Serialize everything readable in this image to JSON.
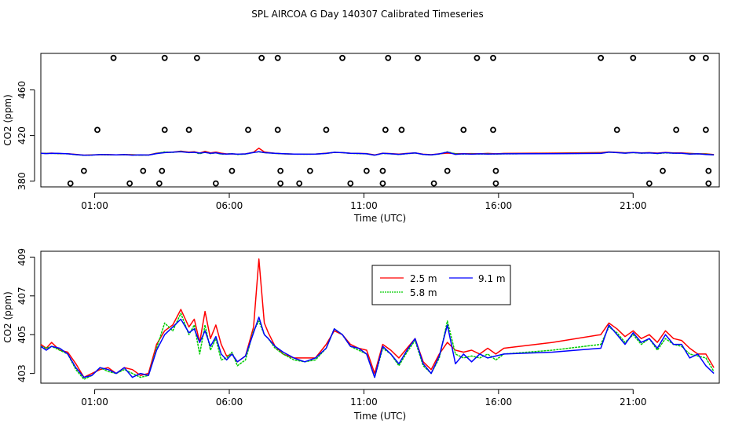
{
  "title": "SPL AIRCOA G  Day 140307  Calibrated Timeseries",
  "chart_data": [
    {
      "type": "line+scatter",
      "xlabel": "Time (UTC)",
      "ylabel": "CO2 (ppm)",
      "xlim": [
        -1,
        24.2
      ],
      "ylim": [
        375,
        492
      ],
      "xticks": [
        {
          "v": 1,
          "label": "01:00"
        },
        {
          "v": 6,
          "label": "06:00"
        },
        {
          "v": 11,
          "label": "11:00"
        },
        {
          "v": 16,
          "label": "16:00"
        },
        {
          "v": 21,
          "label": "21:00"
        }
      ],
      "yticks": [
        {
          "v": 380,
          "label": "380"
        },
        {
          "v": 420,
          "label": "420"
        },
        {
          "v": 460,
          "label": "460"
        }
      ],
      "markers": [
        {
          "x": 0.1,
          "y": 378
        },
        {
          "x": 0.6,
          "y": 389
        },
        {
          "x": 1.1,
          "y": 425
        },
        {
          "x": 1.7,
          "y": 488
        },
        {
          "x": 2.3,
          "y": 378
        },
        {
          "x": 2.8,
          "y": 389
        },
        {
          "x": 3.4,
          "y": 378
        },
        {
          "x": 3.5,
          "y": 389
        },
        {
          "x": 3.6,
          "y": 425
        },
        {
          "x": 3.6,
          "y": 488
        },
        {
          "x": 4.5,
          "y": 425
        },
        {
          "x": 4.8,
          "y": 488
        },
        {
          "x": 5.5,
          "y": 378
        },
        {
          "x": 6.1,
          "y": 389
        },
        {
          "x": 6.7,
          "y": 425
        },
        {
          "x": 7.2,
          "y": 488
        },
        {
          "x": 7.8,
          "y": 488
        },
        {
          "x": 7.8,
          "y": 425
        },
        {
          "x": 7.9,
          "y": 389
        },
        {
          "x": 7.9,
          "y": 378
        },
        {
          "x": 8.6,
          "y": 378
        },
        {
          "x": 9.0,
          "y": 389
        },
        {
          "x": 9.6,
          "y": 425
        },
        {
          "x": 10.2,
          "y": 488
        },
        {
          "x": 10.5,
          "y": 378
        },
        {
          "x": 11.1,
          "y": 389
        },
        {
          "x": 11.7,
          "y": 389
        },
        {
          "x": 11.7,
          "y": 378
        },
        {
          "x": 11.8,
          "y": 425
        },
        {
          "x": 11.9,
          "y": 488
        },
        {
          "x": 12.4,
          "y": 425
        },
        {
          "x": 13.0,
          "y": 488
        },
        {
          "x": 13.6,
          "y": 378
        },
        {
          "x": 14.1,
          "y": 389
        },
        {
          "x": 14.7,
          "y": 425
        },
        {
          "x": 15.2,
          "y": 488
        },
        {
          "x": 15.8,
          "y": 488
        },
        {
          "x": 15.8,
          "y": 425
        },
        {
          "x": 15.9,
          "y": 389
        },
        {
          "x": 15.9,
          "y": 378
        },
        {
          "x": 19.8,
          "y": 488
        },
        {
          "x": 20.4,
          "y": 425
        },
        {
          "x": 21.0,
          "y": 488
        },
        {
          "x": 21.6,
          "y": 378
        },
        {
          "x": 22.1,
          "y": 389
        },
        {
          "x": 22.6,
          "y": 425
        },
        {
          "x": 23.2,
          "y": 488
        },
        {
          "x": 23.7,
          "y": 488
        },
        {
          "x": 23.7,
          "y": 425
        },
        {
          "x": 23.8,
          "y": 389
        },
        {
          "x": 23.8,
          "y": 378
        }
      ],
      "note": "lines are the same three series shown in the lower panel"
    },
    {
      "type": "line",
      "xlabel": "Time (UTC)",
      "ylabel": "CO2 (ppm)",
      "xlim": [
        -1,
        24.2
      ],
      "ylim": [
        402.5,
        409.3
      ],
      "xticks": [
        {
          "v": 1,
          "label": "01:00"
        },
        {
          "v": 6,
          "label": "06:00"
        },
        {
          "v": 11,
          "label": "11:00"
        },
        {
          "v": 16,
          "label": "16:00"
        },
        {
          "v": 21,
          "label": "21:00"
        }
      ],
      "yticks": [
        {
          "v": 403,
          "label": "403"
        },
        {
          "v": 405,
          "label": "405"
        },
        {
          "v": 407,
          "label": "407"
        },
        {
          "v": 409,
          "label": "409"
        }
      ],
      "legend": {
        "position": "top-center",
        "entries": [
          {
            "label": "2.5 m",
            "color": "#ff0000"
          },
          {
            "label": "5.8 m",
            "color": "#00cd00"
          },
          {
            "label": "9.1 m",
            "color": "#0000ff"
          }
        ]
      },
      "series": [
        {
          "name": "2.5 m",
          "color": "#ff0000",
          "x": [
            -1.0,
            -0.8,
            -0.6,
            -0.3,
            0.0,
            0.3,
            0.6,
            0.9,
            1.2,
            1.5,
            1.8,
            2.1,
            2.4,
            2.7,
            3.0,
            3.3,
            3.6,
            3.9,
            4.2,
            4.5,
            4.7,
            4.9,
            5.1,
            5.3,
            5.5,
            5.7,
            5.9,
            6.1,
            6.3,
            6.6,
            6.9,
            7.1,
            7.3,
            7.45,
            7.7,
            8.0,
            8.4,
            8.8,
            9.2,
            9.6,
            9.9,
            10.2,
            10.5,
            10.8,
            11.1,
            11.4,
            11.7,
            12.0,
            12.3,
            12.6,
            12.9,
            13.2,
            13.5,
            13.8,
            14.1,
            14.4,
            14.7,
            15.0,
            15.3,
            15.6,
            15.9,
            16.2,
            18.0,
            19.8,
            20.1,
            20.4,
            20.7,
            21.0,
            21.3,
            21.6,
            21.9,
            22.2,
            22.5,
            22.8,
            23.1,
            23.4,
            23.7,
            24.0
          ],
          "y": [
            404.5,
            404.3,
            404.6,
            404.2,
            404.1,
            403.5,
            402.8,
            403.0,
            403.2,
            403.3,
            403.0,
            403.3,
            403.2,
            402.9,
            403.0,
            404.5,
            405.2,
            405.5,
            406.3,
            405.4,
            405.8,
            404.6,
            406.2,
            404.8,
            405.5,
            404.5,
            403.9,
            404.0,
            403.6,
            403.9,
            405.4,
            408.9,
            405.6,
            405.1,
            404.4,
            404.0,
            403.8,
            403.8,
            403.8,
            404.5,
            405.2,
            405.0,
            404.5,
            404.3,
            404.2,
            403.0,
            404.5,
            404.2,
            403.8,
            404.3,
            404.8,
            403.6,
            403.2,
            404.0,
            404.6,
            404.2,
            404.1,
            404.2,
            404.0,
            404.3,
            404.0,
            404.3,
            404.6,
            405.0,
            405.6,
            405.3,
            404.9,
            405.2,
            404.8,
            405.0,
            404.6,
            405.2,
            404.8,
            404.7,
            404.3,
            404.0,
            404.0,
            403.3
          ],
          "points_note": "estimated from plot"
        },
        {
          "name": "5.8 m",
          "color": "#00cd00",
          "x": [
            -1.0,
            -0.8,
            -0.6,
            -0.3,
            0.0,
            0.3,
            0.6,
            0.9,
            1.2,
            1.5,
            1.8,
            2.1,
            2.4,
            2.7,
            3.0,
            3.3,
            3.6,
            3.9,
            4.2,
            4.5,
            4.7,
            4.9,
            5.1,
            5.3,
            5.5,
            5.7,
            5.9,
            6.1,
            6.3,
            6.6,
            6.9,
            7.1,
            7.3,
            7.45,
            7.7,
            8.0,
            8.4,
            8.8,
            9.2,
            9.6,
            9.9,
            10.2,
            10.5,
            10.8,
            11.1,
            11.4,
            11.7,
            12.0,
            12.3,
            12.6,
            12.9,
            13.2,
            13.5,
            13.8,
            14.1,
            14.4,
            14.7,
            15.0,
            15.3,
            15.6,
            15.9,
            16.2,
            18.0,
            19.8,
            20.1,
            20.4,
            20.7,
            21.0,
            21.3,
            21.6,
            21.9,
            22.2,
            22.5,
            22.8,
            23.1,
            23.4,
            23.7,
            24.0
          ],
          "y": [
            404.4,
            404.3,
            404.4,
            404.2,
            404.0,
            403.2,
            402.7,
            402.9,
            403.3,
            403.1,
            403.0,
            403.2,
            403.0,
            402.8,
            402.9,
            404.3,
            405.6,
            405.2,
            406.1,
            405.0,
            405.5,
            404.0,
            405.5,
            404.2,
            404.8,
            403.7,
            403.8,
            404.1,
            403.4,
            403.7,
            405.2,
            405.7,
            405.0,
            404.8,
            404.3,
            404.0,
            403.7,
            403.6,
            403.7,
            404.3,
            405.3,
            405.0,
            404.4,
            404.2,
            404.0,
            402.8,
            404.3,
            404.0,
            403.4,
            404.1,
            404.7,
            403.4,
            403.0,
            403.8,
            405.7,
            404.0,
            403.8,
            403.9,
            403.8,
            404.0,
            403.7,
            404.0,
            404.2,
            404.5,
            405.4,
            405.1,
            404.6,
            405.0,
            404.5,
            404.8,
            404.2,
            404.8,
            404.5,
            404.4,
            404.0,
            403.9,
            403.8,
            403.1
          ],
          "points_note": "estimated from plot"
        },
        {
          "name": "9.1 m",
          "color": "#0000ff",
          "x": [
            -1.0,
            -0.8,
            -0.6,
            -0.3,
            0.0,
            0.3,
            0.6,
            0.9,
            1.2,
            1.5,
            1.8,
            2.1,
            2.4,
            2.7,
            3.0,
            3.3,
            3.6,
            3.9,
            4.2,
            4.5,
            4.7,
            4.9,
            5.1,
            5.3,
            5.5,
            5.7,
            5.9,
            6.1,
            6.3,
            6.6,
            6.9,
            7.1,
            7.3,
            7.45,
            7.7,
            8.0,
            8.4,
            8.8,
            9.2,
            9.6,
            9.9,
            10.2,
            10.5,
            10.8,
            11.1,
            11.4,
            11.7,
            12.0,
            12.3,
            12.6,
            12.9,
            13.2,
            13.5,
            13.8,
            14.1,
            14.4,
            14.7,
            15.0,
            15.3,
            15.6,
            15.9,
            16.2,
            18.0,
            19.8,
            20.1,
            20.4,
            20.7,
            21.0,
            21.3,
            21.6,
            21.9,
            22.2,
            22.5,
            22.8,
            23.1,
            23.4,
            23.7,
            24.0
          ],
          "y": [
            404.4,
            404.2,
            404.4,
            404.3,
            404.0,
            403.3,
            402.8,
            402.9,
            403.3,
            403.2,
            403.0,
            403.3,
            402.8,
            403.0,
            402.9,
            404.2,
            405.0,
            405.4,
            405.8,
            405.1,
            405.3,
            404.6,
            405.2,
            404.4,
            404.9,
            404.0,
            403.7,
            404.0,
            403.6,
            403.9,
            405.1,
            405.9,
            405.0,
            404.8,
            404.4,
            404.1,
            403.8,
            403.6,
            403.8,
            404.3,
            405.3,
            405.0,
            404.4,
            404.3,
            404.0,
            402.8,
            404.4,
            404.0,
            403.5,
            404.2,
            404.8,
            403.5,
            403.0,
            403.9,
            405.5,
            403.5,
            404.0,
            403.6,
            404.0,
            403.8,
            403.9,
            404.0,
            404.1,
            404.3,
            405.5,
            405.0,
            404.5,
            405.1,
            404.6,
            404.8,
            404.3,
            405.0,
            404.5,
            404.5,
            403.8,
            404.0,
            403.4,
            403.0
          ],
          "points_note": "estimated from plot"
        }
      ]
    }
  ]
}
